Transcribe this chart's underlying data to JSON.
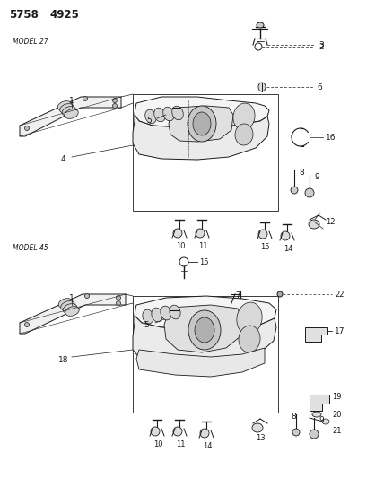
{
  "bg_color": "#ffffff",
  "line_color": "#1a1a1a",
  "text_color": "#1a1a1a",
  "title1": "5758",
  "title2": "4925",
  "model1": "MODEL 27",
  "model2": "MODEL 45",
  "figsize": [
    4.28,
    5.33
  ],
  "dpi": 100
}
